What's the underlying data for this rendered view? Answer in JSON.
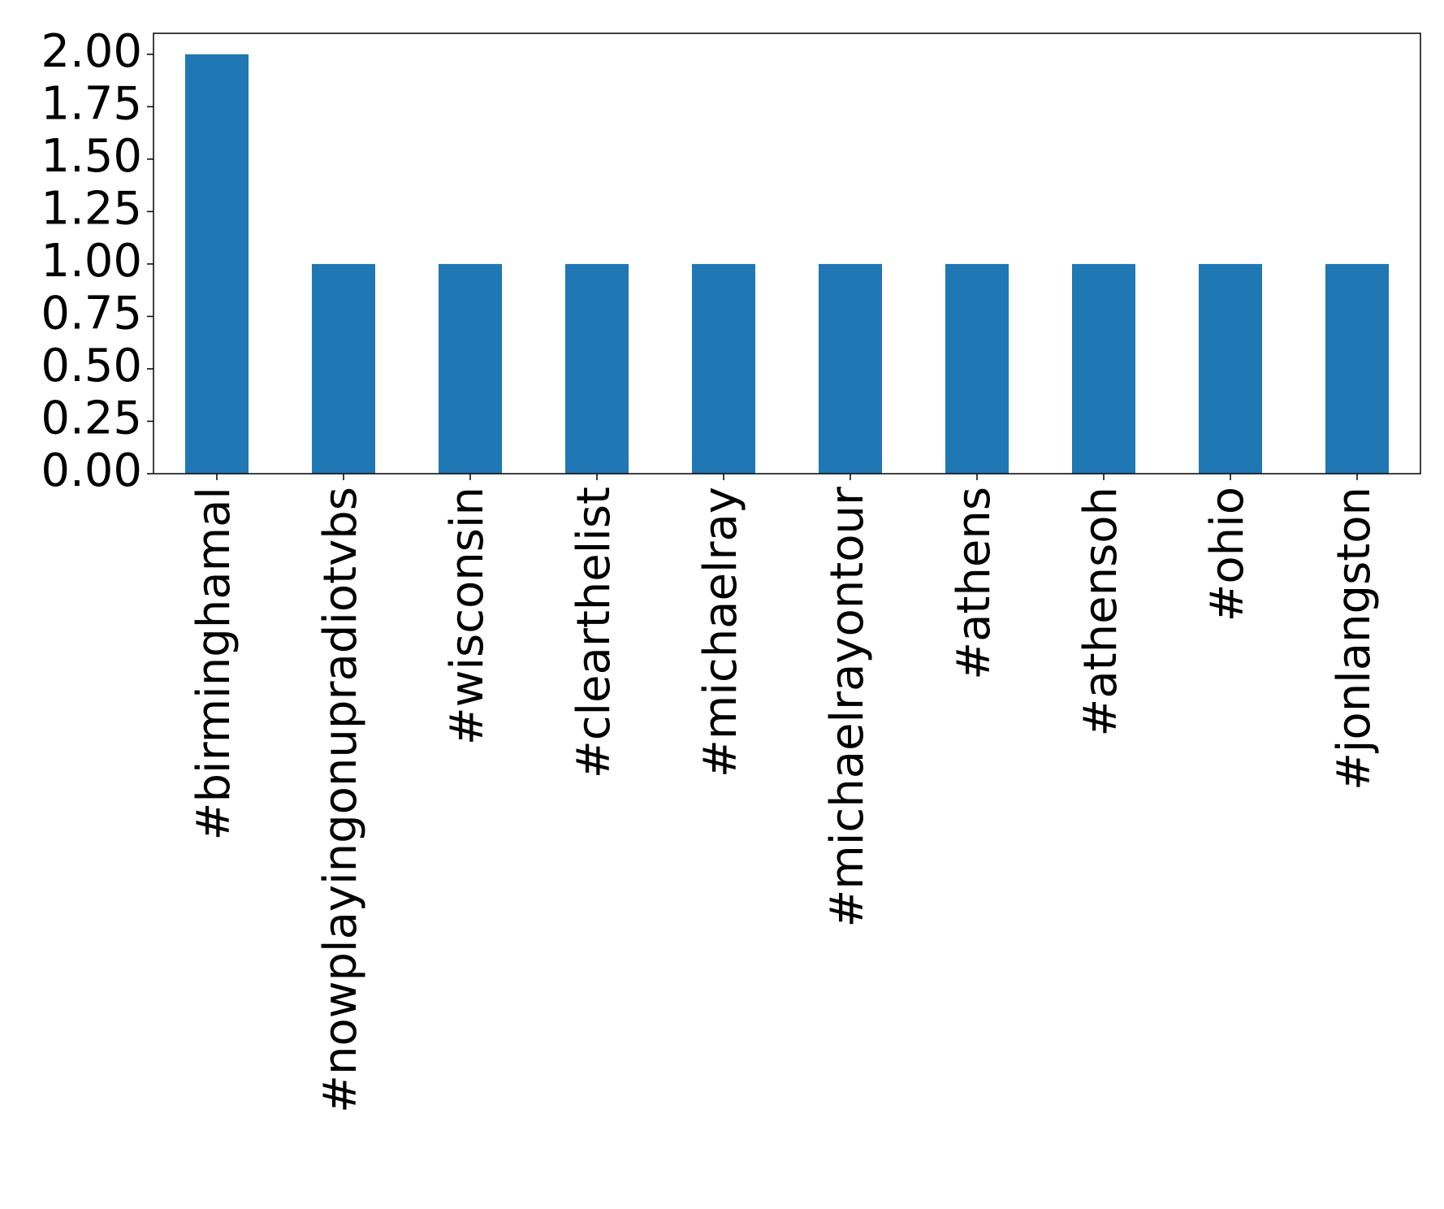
{
  "chart_data": {
    "type": "bar",
    "categories": [
      "#birminghamal",
      "#nowplayingonupradiotvbs",
      "#wisconsin",
      "#clearthelist",
      "#michaelray",
      "#michaelrayontour",
      "#athens",
      "#athensoh",
      "#ohio",
      "#jonlangston"
    ],
    "values": [
      2,
      1,
      1,
      1,
      1,
      1,
      1,
      1,
      1,
      1
    ],
    "color": "#1f77b4",
    "ylim": [
      0,
      2.1
    ],
    "yticks": [
      {
        "value": 0,
        "label": "0.00"
      },
      {
        "value": 0.25,
        "label": "0.25"
      },
      {
        "value": 0.5,
        "label": "0.50"
      },
      {
        "value": 0.75,
        "label": "0.75"
      },
      {
        "value": 1,
        "label": "1.00"
      },
      {
        "value": 1.25,
        "label": "1.25"
      },
      {
        "value": 1.5,
        "label": "1.50"
      },
      {
        "value": 1.75,
        "label": "1.75"
      },
      {
        "value": 2,
        "label": "2.00"
      }
    ],
    "grid": false
  }
}
